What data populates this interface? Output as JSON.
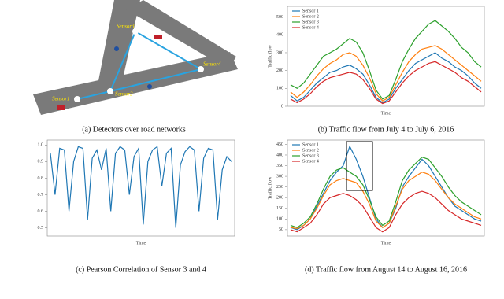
{
  "diagram": {
    "caption": "(a) Detectors over road networks",
    "nodes": [
      {
        "label": "Sensor1"
      },
      {
        "label": "Sensor2"
      },
      {
        "label": "Sensor3"
      },
      {
        "label": "Sensor4"
      }
    ]
  },
  "chart_data": [
    {
      "type": "line",
      "caption": "(b) Traffic flow  from July 4 to July 6, 2016",
      "xlabel": "Time",
      "ylabel": "Traffic flow",
      "ylim": [
        0,
        560
      ],
      "yticks": [
        0,
        100,
        200,
        300,
        400,
        500
      ],
      "series": [
        {
          "name": "Sensor 1",
          "color": "#1f77b4",
          "values": [
            60,
            30,
            50,
            90,
            130,
            160,
            190,
            200,
            220,
            230,
            210,
            180,
            120,
            50,
            20,
            40,
            100,
            150,
            200,
            240,
            260,
            280,
            300,
            270,
            250,
            220,
            200,
            170,
            130,
            100
          ]
        },
        {
          "name": "Sensor 2",
          "color": "#ff7f0e",
          "values": [
            80,
            50,
            80,
            120,
            170,
            210,
            240,
            260,
            290,
            300,
            280,
            230,
            160,
            70,
            30,
            50,
            120,
            190,
            250,
            290,
            320,
            330,
            340,
            320,
            290,
            260,
            230,
            200,
            170,
            140
          ]
        },
        {
          "name": "Sensor 3",
          "color": "#2ca02c",
          "values": [
            120,
            100,
            130,
            180,
            230,
            280,
            300,
            320,
            350,
            380,
            360,
            300,
            200,
            90,
            40,
            60,
            150,
            250,
            320,
            380,
            420,
            460,
            480,
            450,
            420,
            380,
            330,
            300,
            250,
            220
          ]
        },
        {
          "name": "Sensor 4",
          "color": "#d62728",
          "values": [
            40,
            20,
            40,
            70,
            110,
            140,
            160,
            170,
            180,
            190,
            180,
            150,
            100,
            40,
            15,
            30,
            80,
            130,
            170,
            200,
            220,
            240,
            250,
            230,
            210,
            190,
            160,
            140,
            110,
            80
          ]
        }
      ]
    },
    {
      "type": "line",
      "caption": "(c) Pearson Correlation of Sensor 3 and 4",
      "xlabel": "Time",
      "ylim": [
        0.45,
        1.03
      ],
      "yticks": [
        0.5,
        0.6,
        0.7,
        0.8,
        0.9,
        {
          "value": 1,
          "label": "1.0"
        }
      ],
      "series": [
        {
          "color": "#1f77b4",
          "values": [
            0.95,
            0.7,
            0.98,
            0.97,
            0.6,
            0.9,
            0.99,
            0.98,
            0.55,
            0.92,
            0.97,
            0.85,
            0.98,
            0.6,
            0.95,
            0.99,
            0.97,
            0.7,
            0.93,
            0.98,
            0.52,
            0.9,
            0.97,
            0.99,
            0.75,
            0.95,
            0.98,
            0.5,
            0.88,
            0.96,
            0.99,
            0.97,
            0.6,
            0.92,
            0.98,
            0.97,
            0.55,
            0.85,
            0.93,
            0.9
          ]
        }
      ]
    },
    {
      "type": "line",
      "caption": "(d) Traffic flow  from August 14 to August 16, 2016",
      "xlabel": "Time",
      "ylabel": "Traffic flow",
      "ylim": [
        20,
        470
      ],
      "yticks": [
        50,
        100,
        150,
        200,
        250,
        300,
        350,
        400,
        450
      ],
      "series": [
        {
          "name": "Sensor 1",
          "color": "#1f77b4",
          "values": [
            60,
            50,
            70,
            100,
            160,
            220,
            280,
            320,
            350,
            440,
            380,
            300,
            200,
            100,
            60,
            80,
            150,
            250,
            300,
            340,
            380,
            350,
            300,
            250,
            200,
            160,
            140,
            120,
            100,
            90
          ]
        },
        {
          "name": "Sensor 2",
          "color": "#ff7f0e",
          "values": [
            60,
            55,
            70,
            100,
            150,
            210,
            260,
            280,
            290,
            280,
            270,
            230,
            170,
            90,
            60,
            80,
            160,
            240,
            280,
            300,
            320,
            310,
            280,
            240,
            200,
            170,
            150,
            130,
            110,
            100
          ]
        },
        {
          "name": "Sensor 3",
          "color": "#2ca02c",
          "values": [
            70,
            60,
            80,
            110,
            170,
            240,
            300,
            330,
            340,
            320,
            300,
            260,
            190,
            110,
            70,
            90,
            180,
            280,
            330,
            360,
            390,
            380,
            340,
            300,
            250,
            210,
            180,
            160,
            140,
            120
          ]
        },
        {
          "name": "Sensor 4",
          "color": "#d62728",
          "values": [
            50,
            40,
            60,
            80,
            120,
            170,
            200,
            210,
            220,
            210,
            190,
            160,
            110,
            60,
            40,
            60,
            120,
            170,
            200,
            220,
            230,
            220,
            200,
            170,
            140,
            120,
            100,
            90,
            80,
            70
          ]
        }
      ]
    }
  ]
}
